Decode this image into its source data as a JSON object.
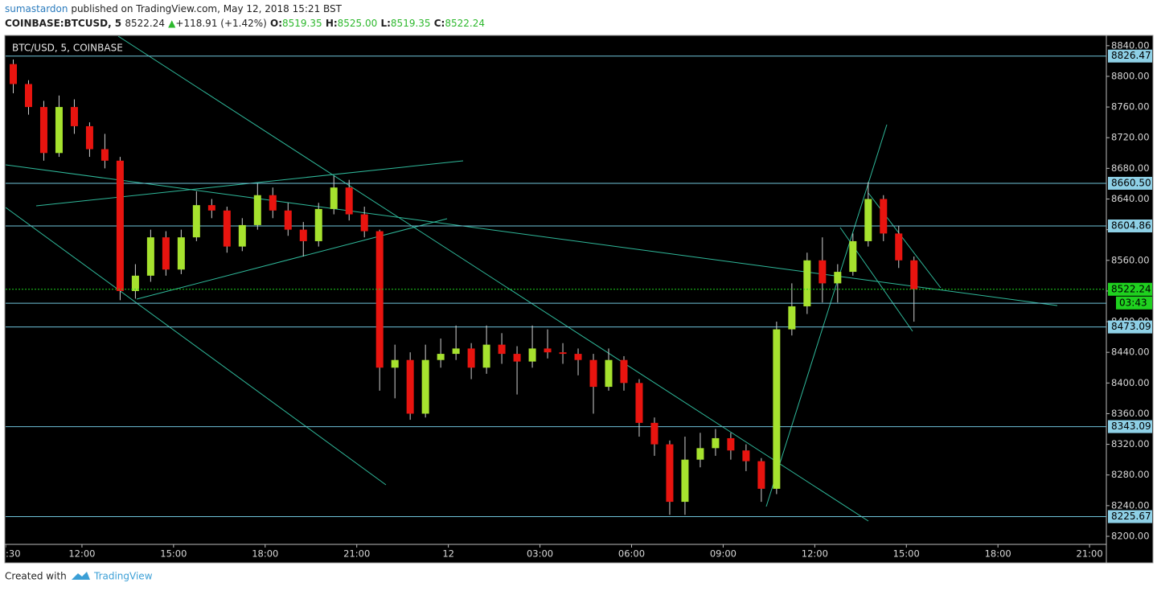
{
  "header": {
    "author": "sumastardon",
    "published": "published on TradingView.com, May 12, 2018 15:21 BST",
    "symbol": "COINBASE:BTCUSD, 5",
    "price": "8522.24",
    "arrow": "▲",
    "change": "+118.91 (+1.42%)",
    "o_label": "O:",
    "o": "8519.35",
    "h_label": "H:",
    "h": "8525.00",
    "l_label": "L:",
    "l": "8519.35",
    "c_label": "C:",
    "c": "8522.24"
  },
  "chart_data": {
    "type": "candlestick",
    "title": "BTC/USD, 5, COINBASE",
    "up_color": "#a6e22e",
    "down_color": "#e8140f",
    "level_color": "#6fc3d9",
    "last_color": "#1fd11f",
    "xlim": [
      9.5,
      45.55
    ],
    "ylim": [
      8189.5,
      8852.4
    ],
    "xticks": [
      {
        "value": 9.5,
        "label": ":30"
      },
      {
        "value": 12,
        "label": "12:00"
      },
      {
        "value": 15,
        "label": "15:00"
      },
      {
        "value": 18,
        "label": "18:00"
      },
      {
        "value": 21,
        "label": "21:00"
      },
      {
        "value": 24,
        "label": "12"
      },
      {
        "value": 27,
        "label": "03:00"
      },
      {
        "value": 30,
        "label": "06:00"
      },
      {
        "value": 33,
        "label": "09:00"
      },
      {
        "value": 36,
        "label": "12:00"
      },
      {
        "value": 39,
        "label": "15:00"
      },
      {
        "value": 42,
        "label": "18:00"
      },
      {
        "value": 45,
        "label": "21:00"
      }
    ],
    "yticks": [
      {
        "value": 8200,
        "label": "8200.00"
      },
      {
        "value": 8240,
        "label": "8240.00"
      },
      {
        "value": 8280,
        "label": "8280.00"
      },
      {
        "value": 8320,
        "label": "8320.00"
      },
      {
        "value": 8360,
        "label": "8360.00"
      },
      {
        "value": 8400,
        "label": "8400.00"
      },
      {
        "value": 8440,
        "label": "8440.00"
      },
      {
        "value": 8480,
        "label": "8480.00"
      },
      {
        "value": 8520,
        "label": "8520.00"
      },
      {
        "value": 8560,
        "label": "8560.00"
      },
      {
        "value": 8600,
        "label": "8600.00"
      },
      {
        "value": 8640,
        "label": "8640.00"
      },
      {
        "value": 8680,
        "label": "8680.00"
      },
      {
        "value": 8720,
        "label": "8720.00"
      },
      {
        "value": 8760,
        "label": "8760.00"
      },
      {
        "value": 8800,
        "label": "8800.00"
      },
      {
        "value": 8840,
        "label": "8840.00"
      }
    ],
    "levels": [
      {
        "value": 8826.47,
        "label": "8826.47"
      },
      {
        "value": 8660.5,
        "label": "8660.50"
      },
      {
        "value": 8604.86,
        "label": "8604.86"
      },
      {
        "value": 8473.09,
        "label": "8473.09"
      },
      {
        "value": 8343.09,
        "label": "8343.09"
      },
      {
        "value": 8225.67,
        "label": "8225.67"
      }
    ],
    "unlabeled_levels": [
      8504
    ],
    "last_price": 8522.24,
    "countdown": "03:43",
    "x": [
      9.75,
      10.25,
      10.75,
      11.25,
      11.75,
      12.25,
      12.75,
      13.25,
      13.75,
      14.25,
      14.75,
      15.25,
      15.75,
      16.25,
      16.75,
      17.25,
      17.75,
      18.25,
      18.75,
      19.25,
      19.75,
      20.25,
      20.75,
      21.25,
      21.75,
      22.25,
      22.75,
      23.25,
      23.75,
      24.25,
      24.75,
      25.25,
      25.75,
      26.25,
      26.75,
      27.25,
      27.75,
      28.25,
      28.75,
      29.25,
      29.75,
      30.25,
      30.75,
      31.25,
      31.75,
      32.25,
      32.75,
      33.25,
      33.75,
      34.25,
      34.75,
      35.25,
      35.75,
      36.25,
      36.75,
      37.25,
      37.75,
      38.25,
      38.75,
      39.25
    ],
    "open": [
      8816,
      8790,
      8760,
      8700,
      8760,
      8735,
      8705,
      8690,
      8520,
      8540,
      8590,
      8548,
      8590,
      8632,
      8625,
      8578,
      8606,
      8645,
      8625,
      8600,
      8585,
      8627,
      8655,
      8620,
      8598,
      8420,
      8430,
      8360,
      8430,
      8438,
      8445,
      8420,
      8450,
      8438,
      8428,
      8445,
      8440,
      8438,
      8430,
      8395,
      8430,
      8400,
      8348,
      8320,
      8245,
      8300,
      8315,
      8328,
      8312,
      8298,
      8262,
      8470,
      8500,
      8560,
      8530,
      8545,
      8585,
      8640,
      8595,
      8560
    ],
    "high": [
      8822,
      8795,
      8768,
      8775,
      8770,
      8740,
      8725,
      8695,
      8555,
      8600,
      8598,
      8600,
      8650,
      8640,
      8630,
      8615,
      8660,
      8655,
      8635,
      8610,
      8635,
      8670,
      8665,
      8630,
      8600,
      8450,
      8440,
      8450,
      8458,
      8475,
      8452,
      8475,
      8465,
      8448,
      8475,
      8470,
      8452,
      8445,
      8438,
      8445,
      8435,
      8405,
      8355,
      8325,
      8330,
      8335,
      8340,
      8335,
      8320,
      8302,
      8480,
      8530,
      8570,
      8590,
      8555,
      8595,
      8662,
      8645,
      8605,
      8565
    ],
    "low": [
      8778,
      8750,
      8690,
      8695,
      8725,
      8695,
      8680,
      8508,
      8510,
      8532,
      8540,
      8542,
      8585,
      8615,
      8570,
      8572,
      8600,
      8615,
      8592,
      8565,
      8578,
      8620,
      8612,
      8590,
      8390,
      8380,
      8352,
      8355,
      8420,
      8430,
      8405,
      8412,
      8425,
      8385,
      8420,
      8432,
      8425,
      8410,
      8360,
      8390,
      8390,
      8330,
      8305,
      8228,
      8228,
      8290,
      8305,
      8300,
      8285,
      8245,
      8255,
      8462,
      8490,
      8505,
      8505,
      8540,
      8578,
      8585,
      8550,
      8480
    ],
    "close": [
      8790,
      8760,
      8700,
      8760,
      8735,
      8705,
      8690,
      8520,
      8540,
      8590,
      8548,
      8590,
      8632,
      8625,
      8578,
      8606,
      8645,
      8625,
      8600,
      8585,
      8627,
      8655,
      8620,
      8598,
      8420,
      8430,
      8360,
      8430,
      8438,
      8445,
      8420,
      8450,
      8438,
      8428,
      8445,
      8440,
      8438,
      8430,
      8395,
      8430,
      8400,
      8348,
      8320,
      8245,
      8300,
      8315,
      8328,
      8312,
      8298,
      8262,
      8470,
      8500,
      8560,
      8530,
      8545,
      8585,
      8640,
      8595,
      8560,
      8522.24
    ]
  },
  "footer": {
    "created": "Created with",
    "brand": "TradingView"
  }
}
